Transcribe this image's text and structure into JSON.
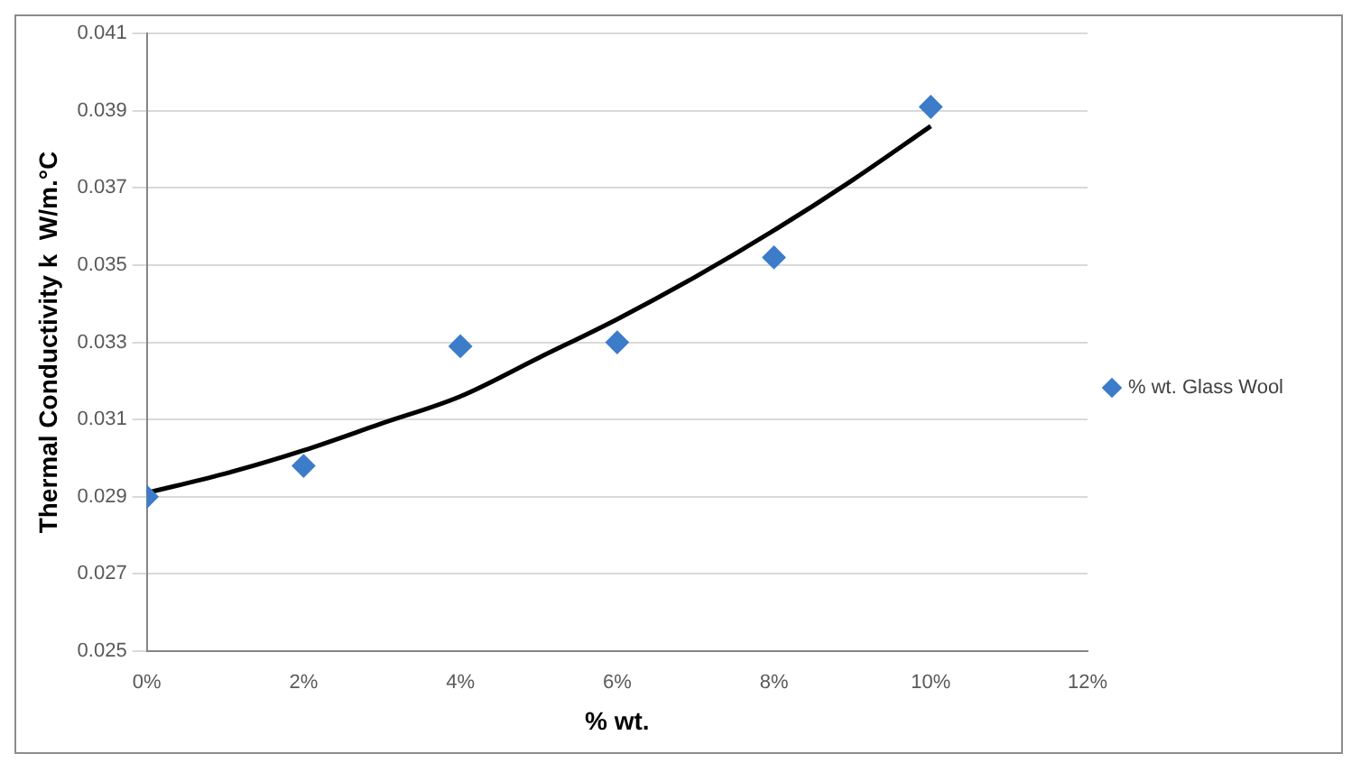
{
  "chart_data": {
    "type": "scatter",
    "xlabel": "% wt.",
    "ylabel": "Thermal Conductivity k  W/m.°C",
    "series": [
      {
        "name": "% wt. Glass Wool",
        "marker": "diamond",
        "color": "#3d7cc9",
        "x": [
          0,
          2,
          4,
          6,
          8,
          10
        ],
        "values": [
          0.029,
          0.0298,
          0.0329,
          0.033,
          0.0352,
          0.0391
        ]
      },
      {
        "type": "line",
        "marker": "none",
        "color": "#000000",
        "x": [
          0,
          1,
          2,
          3,
          4,
          5,
          6,
          7,
          8,
          9,
          10
        ],
        "values": [
          0.0291,
          0.0296,
          0.0302,
          0.0309,
          0.0316,
          0.0326,
          0.0336,
          0.0347,
          0.0359,
          0.0372,
          0.0386
        ]
      }
    ],
    "xlim": [
      0,
      12
    ],
    "xticks": [
      {
        "value": 0,
        "label": "0%"
      },
      {
        "value": 2,
        "label": "2%"
      },
      {
        "value": 4,
        "label": "4%"
      },
      {
        "value": 6,
        "label": "6%"
      },
      {
        "value": 8,
        "label": "8%"
      },
      {
        "value": 10,
        "label": "10%"
      },
      {
        "value": 12,
        "label": "12%"
      }
    ],
    "ylim": [
      0.025,
      0.041
    ],
    "yticks": [
      0.025,
      0.027,
      0.029,
      0.031,
      0.033,
      0.035,
      0.037,
      0.039,
      0.041
    ],
    "grid": "y",
    "legend": "right"
  }
}
